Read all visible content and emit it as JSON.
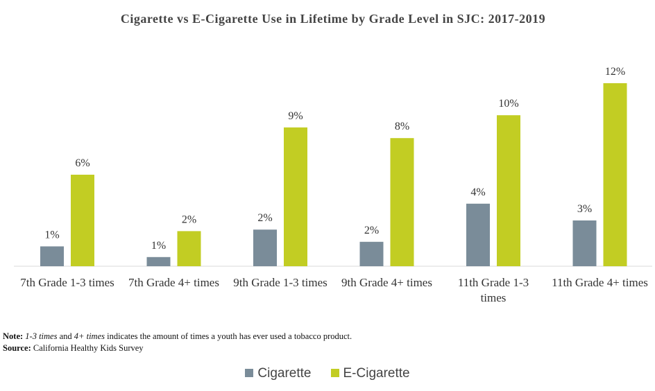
{
  "chart_data": {
    "type": "bar",
    "title": "Cigarette vs E-Cigarette Use in Lifetime by Grade Level in SJC: 2017-2019",
    "categories": [
      "7th Grade 1-3 times",
      "7th Grade 4+ times",
      "9th Grade 1-3 times",
      "9th Grade 4+ times",
      "11th Grade 1-3 times",
      "11th Grade 4+ times"
    ],
    "series": [
      {
        "name": "Cigarette",
        "color": "#7a8c99",
        "values": [
          1.3,
          0.6,
          2.4,
          1.6,
          4.1,
          3.0
        ],
        "value_labels": [
          "1%",
          "1%",
          "2%",
          "2%",
          "4%",
          "3%"
        ]
      },
      {
        "name": "E-Cigarette",
        "color": "#c2cd23",
        "values": [
          6.0,
          2.3,
          9.1,
          8.4,
          9.9,
          12.0
        ],
        "value_labels": [
          "6%",
          "2%",
          "9%",
          "8%",
          "10%",
          "12%"
        ]
      }
    ],
    "legend": "bottom"
  },
  "note": {
    "label": "Note:",
    "text": [
      "1-3 times",
      " and ",
      "4+ times",
      " indicates the amount of times a youth has ever used a tobacco product."
    ]
  },
  "source": {
    "label": "Source:",
    "text": " California Healthy Kids Survey"
  }
}
